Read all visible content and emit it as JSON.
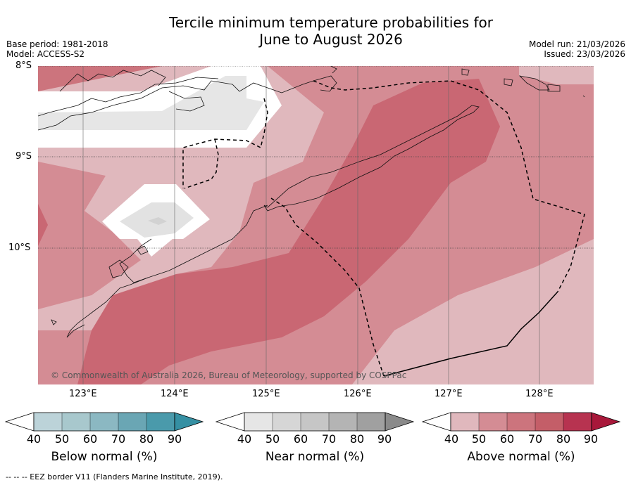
{
  "title_line1": "Tercile minimum temperature probabilities for",
  "title_line2": "June to August 2026",
  "base_period": "Base period: 1981-2018",
  "model": "Model: ACCESS-S2",
  "model_run": "Model run: 21/03/2026",
  "issued": "Issued: 23/03/2026",
  "lat_labels": [
    "8°S",
    "9°S",
    "10°S"
  ],
  "lon_labels": [
    "123°E",
    "124°E",
    "125°E",
    "126°E",
    "127°E",
    "128°E"
  ],
  "credit": "© Commonwealth of Australia 2026, Bureau of Meteorology, supported by COSPPac",
  "colorbars": {
    "below": {
      "label": "Below normal (%)",
      "ticks": [
        "40",
        "50",
        "60",
        "70",
        "80",
        "90"
      ]
    },
    "near": {
      "label": "Near normal (%)",
      "ticks": [
        "40",
        "50",
        "60",
        "70",
        "80",
        "90"
      ]
    },
    "above": {
      "label": "Above normal (%)",
      "ticks": [
        "40",
        "50",
        "60",
        "70",
        "80",
        "90"
      ]
    }
  },
  "footer": "--  --  -- EEZ border V11 (Flanders Marine Institute, 2019).",
  "colors": {
    "below": [
      "#bcd3d9",
      "#a8c8cd",
      "#8bb8c2",
      "#6aa6b4",
      "#4a9aab",
      "#3590a3"
    ],
    "near": [
      "#e6e6e6",
      "#d6d6d6",
      "#c6c6c6",
      "#b4b4b4",
      "#a0a0a0",
      "#8a8a8a"
    ],
    "above": [
      "#e0b8bd",
      "#d48c94",
      "#cc747d",
      "#c45e68",
      "#b73350",
      "#a8183a"
    ]
  }
}
